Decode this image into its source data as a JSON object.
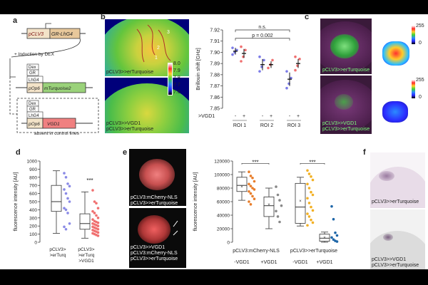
{
  "panels": {
    "a": {
      "label": "a",
      "construct1": {
        "promoter": "pCLV3",
        "gene": "GR-LhG4"
      },
      "induction_text": "+ Induction by DEX",
      "construct2": {
        "dex": "Dex",
        "gr": "GR",
        "lhg4": "LhG4",
        "promoter": "pOp6",
        "gene": "mTurquoise2"
      },
      "construct3": {
        "dex": "Dex",
        "gr": "GR",
        "lhg4": "LhG4",
        "promoter": "pOp6",
        "gene": "VGD1"
      },
      "absent_text": "absent in control lines"
    },
    "b": {
      "label": "b",
      "img_top_caption": "pCLV3>>erTurquoise",
      "img_bottom_caption_1": "pCLV3>>VGD1",
      "img_bottom_caption_2": "pCLV3>>erTurquoise",
      "roi_numbers": [
        "3",
        "2",
        "1"
      ],
      "colorbar_ticks": [
        "8.0",
        "7.9",
        "7.8",
        "7.7",
        "7.6"
      ],
      "chart_data": {
        "type": "scatter",
        "ylabel": "Brillouin shift [GHz]",
        "ylim": [
          7.85,
          7.92
        ],
        "yticks": [
          "7.92",
          "7.91",
          "7.90",
          "7.89",
          "7.88",
          "7.87",
          "7.86",
          "7.85"
        ],
        "row_label": ">VGD1",
        "signs": [
          "-",
          "+",
          "-",
          "+",
          "-",
          "+"
        ],
        "groups": [
          "ROI 1",
          "ROI 2",
          "ROI 3"
        ],
        "series": [
          {
            "roi": "ROI 1",
            "vgd1": "-",
            "mean": 7.901,
            "err": 0.003,
            "points": [
              7.898,
              7.9,
              7.902,
              7.904
            ]
          },
          {
            "roi": "ROI 1",
            "vgd1": "+",
            "mean": 7.899,
            "err": 0.004,
            "points": [
              7.892,
              7.896,
              7.902,
              7.905
            ]
          },
          {
            "roi": "ROI 2",
            "vgd1": "-",
            "mean": 7.889,
            "err": 0.005,
            "points": [
              7.883,
              7.887,
              7.893,
              7.896
            ]
          },
          {
            "roi": "ROI 2",
            "vgd1": "+",
            "mean": 7.889,
            "err": 0.003,
            "points": [
              7.886,
              7.889,
              7.893
            ]
          },
          {
            "roi": "ROI 3",
            "vgd1": "-",
            "mean": 7.876,
            "err": 0.006,
            "points": [
              7.868,
              7.872,
              7.877,
              7.883
            ]
          },
          {
            "roi": "ROI 3",
            "vgd1": "+",
            "mean": 7.89,
            "err": 0.004,
            "points": [
              7.884,
              7.888,
              7.894,
              7.896
            ]
          }
        ],
        "annotations": [
          "n.s.",
          "p = 0.002"
        ]
      }
    },
    "c": {
      "label": "c",
      "caption_top": "pCLV3>>erTurquoise",
      "caption_bottom_1": "pCLV3>>VGD1",
      "caption_bottom_2": "pCLV3>>erTurquoise",
      "scale_max": "255",
      "scale_min": "0"
    },
    "d": {
      "label": "d",
      "chart_data": {
        "type": "box",
        "ylabel": "fluorescence intensity [AU]",
        "ylim": [
          0,
          1000
        ],
        "yticks": [
          "1000",
          "900",
          "800",
          "700",
          "600",
          "500",
          "400",
          "300",
          "200",
          "100",
          "0"
        ],
        "categories": [
          "pCLV3>>erTurq",
          "pCLV3>>erTurq>VGD1"
        ],
        "category_lines": [
          [
            "pCLV3>",
            ">erTurq"
          ],
          [
            "pCLV3>",
            ">erTurq",
            ">VGD1"
          ]
        ],
        "significance": "***",
        "boxes": [
          {
            "min": 110,
            "q1": 380,
            "median": 500,
            "q3": 700,
            "max": 880
          },
          {
            "min": 50,
            "q1": 160,
            "median": 230,
            "q3": 350,
            "max": 620
          }
        ],
        "points": [
          [
            850,
            800,
            720,
            690,
            650,
            600,
            540,
            500,
            420,
            400,
            360,
            230,
            190,
            160
          ],
          [
            640,
            500,
            480,
            420,
            380,
            360,
            330,
            300,
            280,
            260,
            250,
            240,
            230,
            220,
            210,
            200,
            190,
            180,
            170,
            160,
            150,
            140,
            130,
            120,
            110,
            100,
            90,
            80
          ]
        ]
      }
    },
    "e": {
      "label": "e",
      "img_top_caption_1": "pCLV3:mCherry-NLS",
      "img_top_caption_2": "pCLV3>>erTurquoise",
      "img_bottom_caption_1": "pCLV3>>VGD1",
      "img_bottom_caption_2": "pCLV3:mCherry-NLS",
      "img_bottom_caption_3": "pCLV3>>erTurquoise",
      "chart_data": {
        "type": "box",
        "ylabel": "fluorescence intensity [AU]",
        "ylim": [
          0,
          120000
        ],
        "yticks": [
          "120000",
          "100000",
          "80000",
          "60000",
          "40000",
          "20000",
          "0"
        ],
        "group_labels": [
          "pCLV3:mCherry-NLS",
          "pCLV3>>erTurquoise"
        ],
        "sub_labels": [
          "-VGD1",
          "+VGD1",
          "-VGD1",
          "+VGD1"
        ],
        "significance": [
          "***",
          "***"
        ],
        "boxes": [
          {
            "min": 62000,
            "q1": 75000,
            "median": 84000,
            "q3": 96000,
            "max": 104000,
            "mean": 82000
          },
          {
            "min": 20000,
            "q1": 38000,
            "median": 54000,
            "q3": 67000,
            "max": 80000,
            "mean": 56000
          },
          {
            "min": 24000,
            "q1": 28000,
            "median": 52000,
            "q3": 87000,
            "max": 96000,
            "mean": 61000
          },
          {
            "min": 0,
            "q1": 1500,
            "median": 6000,
            "q3": 12000,
            "max": 15000,
            "mean": 7000
          }
        ],
        "points": [
          [
            104000,
            98000,
            95000,
            90000,
            86000,
            83000,
            80000,
            78000,
            75000,
            72000,
            68000,
            64000,
            60000,
            56000
          ],
          [
            82000,
            70000,
            62000,
            54000,
            46000,
            38000,
            30000
          ],
          [
            106000,
            101000,
            97000,
            92000,
            86000,
            80000,
            74000,
            70000,
            65000,
            58000,
            52000,
            47000,
            42000,
            38000,
            33000,
            29000,
            25000
          ],
          [
            53000,
            34000,
            14000,
            10000,
            7000,
            4000,
            2000,
            1000
          ]
        ]
      }
    },
    "f": {
      "label": "f",
      "caption_top": "pCLV3>>erTurquoise",
      "caption_bottom_1": "pCLV3>>VGD1",
      "caption_bottom_2": "pCLV3>>erTurquoise"
    }
  }
}
